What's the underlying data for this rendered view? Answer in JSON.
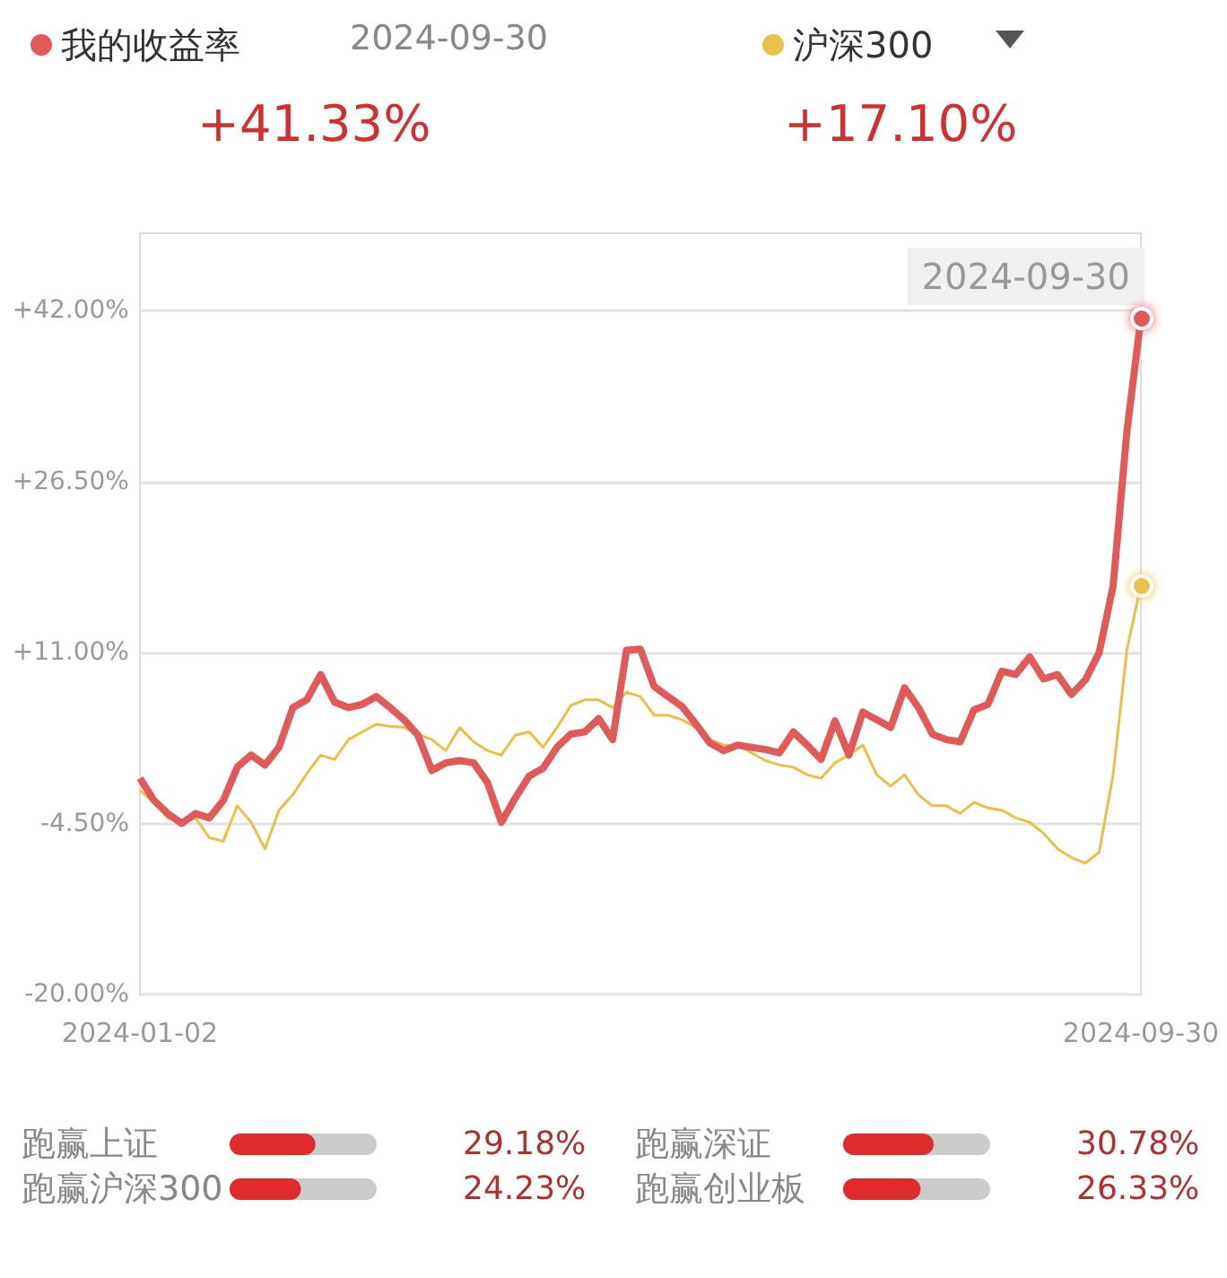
{
  "chart_data": [
    {
      "type": "line",
      "categories": [
        "2024-01-02",
        null,
        null,
        null,
        null,
        null,
        null,
        null,
        null,
        null,
        null,
        null,
        null,
        null,
        null,
        null,
        null,
        null,
        null,
        null,
        null,
        null,
        null,
        null,
        null,
        null,
        null,
        null,
        null,
        null,
        null,
        null,
        null,
        null,
        null,
        null,
        null,
        null,
        null,
        null,
        null,
        null,
        null,
        null,
        null,
        null,
        null,
        null,
        null,
        null,
        null,
        null,
        null,
        null,
        null,
        null,
        null,
        null,
        null,
        null,
        null,
        null,
        null,
        null,
        null,
        null,
        null,
        null,
        null,
        null,
        null,
        null,
        "2024-09-30"
      ],
      "series": [
        {
          "name": "我的收益率",
          "color": "#e05a5a",
          "values": [
            -0.4,
            -2.4,
            -3.6,
            -4.5,
            -3.6,
            -4.0,
            -2.4,
            0.6,
            1.7,
            0.8,
            2.4,
            6.0,
            6.7,
            9.0,
            6.5,
            6.0,
            6.3,
            7.0,
            6.0,
            4.9,
            3.5,
            0.3,
            1.0,
            1.2,
            1.0,
            -0.8,
            -4.4,
            -2.2,
            -0.2,
            0.5,
            2.4,
            3.6,
            3.8,
            5.0,
            3.1,
            11.2,
            11.3,
            7.9,
            7.0,
            6.1,
            4.5,
            2.8,
            2.1,
            2.6,
            2.4,
            2.2,
            1.9,
            3.8,
            2.6,
            1.3,
            4.8,
            1.7,
            5.6,
            4.9,
            4.2,
            7.8,
            6.0,
            3.6,
            3.1,
            2.9,
            5.8,
            6.3,
            9.3,
            9.0,
            10.6,
            8.6,
            9.0,
            7.2,
            8.5,
            11.0,
            17.0,
            31.1,
            41.3
          ]
        },
        {
          "name": "沪深300",
          "color": "#e8c04a",
          "values": [
            -1.5,
            -2.6,
            -4.0,
            -4.4,
            -4.0,
            -5.8,
            -6.1,
            -2.9,
            -4.4,
            -6.8,
            -3.3,
            -1.9,
            0.0,
            1.7,
            1.3,
            3.1,
            3.8,
            4.5,
            4.3,
            4.2,
            3.6,
            3.1,
            2.1,
            4.2,
            2.9,
            2.1,
            1.7,
            3.5,
            3.8,
            2.4,
            4.2,
            6.2,
            6.7,
            6.7,
            6.0,
            7.4,
            7.0,
            5.3,
            5.3,
            4.9,
            4.2,
            3.1,
            2.6,
            2.6,
            1.9,
            1.2,
            0.8,
            0.6,
            -0.1,
            -0.4,
            1.0,
            1.7,
            2.6,
            -0.1,
            -1.1,
            -0.1,
            -1.9,
            -2.9,
            -2.9,
            -3.6,
            -2.6,
            -3.1,
            -3.3,
            -4.0,
            -4.4,
            -5.4,
            -6.8,
            -7.6,
            -8.1,
            -7.1,
            -0.1,
            11.3,
            17.1
          ]
        }
      ],
      "ylim": [
        -20,
        49
      ],
      "yticks": [
        {
          "value": -20,
          "label": "-20.00%"
        },
        {
          "value": -4.5,
          "label": "-4.50%"
        },
        {
          "value": 11,
          "label": "+11.00%"
        },
        {
          "value": 26.5,
          "label": "+26.50%"
        },
        {
          "value": 42,
          "label": "+42.00%"
        }
      ],
      "grid": "y",
      "legend": "top",
      "annotations": [
        "2024-09-30",
        "+41.33%",
        "+17.10%",
        "2024-09-30"
      ]
    },
    {
      "type": "bar",
      "orientation": "horizontal",
      "categories": [
        "跑赢上证",
        "跑赢沪深300"
      ],
      "values": [
        29.18,
        24.23
      ],
      "color": "#e02b2b",
      "value_labels": [
        "29.18%",
        "24.23%"
      ],
      "xlim": [
        0,
        50
      ]
    },
    {
      "type": "bar",
      "orientation": "horizontal",
      "categories": [
        "跑赢深证",
        "跑赢创业板"
      ],
      "values": [
        30.78,
        26.33
      ],
      "color": "#e02b2b",
      "value_labels": [
        "30.78%",
        "26.33%"
      ],
      "xlim": [
        0,
        50
      ]
    }
  ]
}
